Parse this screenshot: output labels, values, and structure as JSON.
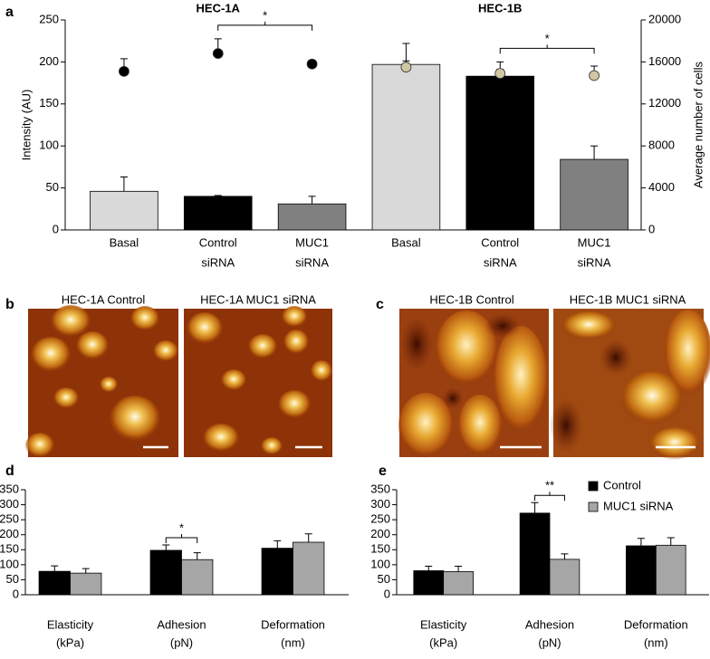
{
  "chart_data": [
    {
      "type": "bar",
      "panel_label": "a",
      "group_titles": [
        "HEC-1A",
        "HEC-1B"
      ],
      "categories": [
        [
          "Basal"
        ],
        [
          "Control",
          "siRNA"
        ],
        [
          "MUC1",
          "siRNA"
        ],
        [
          "Basal"
        ],
        [
          "Control",
          "siRNA"
        ],
        [
          "MUC1",
          "siRNA"
        ]
      ],
      "series": [
        {
          "colors": [
            "#d9d9d9",
            "#000000",
            "#808080",
            "#d9d9d9",
            "#000000",
            "#808080"
          ],
          "values": [
            46,
            40,
            31,
            197,
            183,
            84
          ],
          "errors": [
            17,
            1,
            9,
            25,
            17,
            16
          ]
        },
        {
          "axis": "y2",
          "marker": "dot",
          "colors": [
            "#000000",
            "#000000",
            "#000000",
            "#cfc6a3",
            "#cfc6a3",
            "#cfc6a3"
          ],
          "values": [
            15100,
            16800,
            15800,
            15500,
            14900,
            14700
          ],
          "errors": [
            1200,
            1400,
            300,
            600,
            400,
            900
          ]
        }
      ],
      "ylabel": "Intensity (AU)",
      "y2label": "Average number of cells",
      "ylim": [
        0,
        250
      ],
      "yticks": [
        0,
        50,
        100,
        150,
        200,
        250
      ],
      "y2lim": [
        0,
        20000
      ],
      "y2ticks": [
        0,
        4000,
        8000,
        12000,
        16000,
        20000
      ],
      "annotations": [
        {
          "text": "*",
          "categories": [
            1,
            2
          ]
        },
        {
          "text": "*",
          "categories": [
            4,
            5
          ]
        }
      ]
    },
    {
      "type": "bar",
      "panel_label": "d",
      "categories": [
        [
          "Elasticity",
          "(kPa)"
        ],
        [
          "Adhesion",
          "(pN)"
        ],
        [
          "Deformation",
          "(nm)"
        ]
      ],
      "series": [
        {
          "name": "Control",
          "color": "#000000",
          "values": [
            78,
            148,
            155
          ],
          "errors": [
            18,
            18,
            25
          ]
        },
        {
          "name": "MUC1 siRNA",
          "color": "#a6a6a6",
          "values": [
            72,
            117,
            175
          ],
          "errors": [
            15,
            23,
            28
          ]
        }
      ],
      "ylim": [
        0,
        350
      ],
      "yticks": [
        0,
        50,
        100,
        150,
        200,
        250,
        300,
        350
      ],
      "legend": false,
      "annotations": [
        {
          "text": "*",
          "categories": [
            1
          ]
        }
      ]
    },
    {
      "type": "bar",
      "panel_label": "e",
      "categories": [
        [
          "Elasticity",
          "(kPa)"
        ],
        [
          "Adhesion",
          "(pN)"
        ],
        [
          "Deformation",
          "(nm)"
        ]
      ],
      "series": [
        {
          "name": "Control",
          "color": "#000000",
          "values": [
            80,
            272,
            163
          ],
          "errors": [
            15,
            35,
            25
          ]
        },
        {
          "name": "MUC1 siRNA",
          "color": "#a6a6a6",
          "values": [
            77,
            118,
            165
          ],
          "errors": [
            18,
            18,
            25
          ]
        }
      ],
      "ylim": [
        0,
        350
      ],
      "yticks": [
        0,
        50,
        100,
        150,
        200,
        250,
        300,
        350
      ],
      "legend": true,
      "annotations": [
        {
          "text": "**",
          "categories": [
            1
          ]
        }
      ]
    }
  ],
  "images": [
    {
      "panel_label": "b",
      "captions": [
        "HEC-1A Control",
        "HEC-1A MUC1 siRNA"
      ]
    },
    {
      "panel_label": "c",
      "captions": [
        "HEC-1B Control",
        "HEC-1B MUC1 siRNA"
      ]
    }
  ]
}
